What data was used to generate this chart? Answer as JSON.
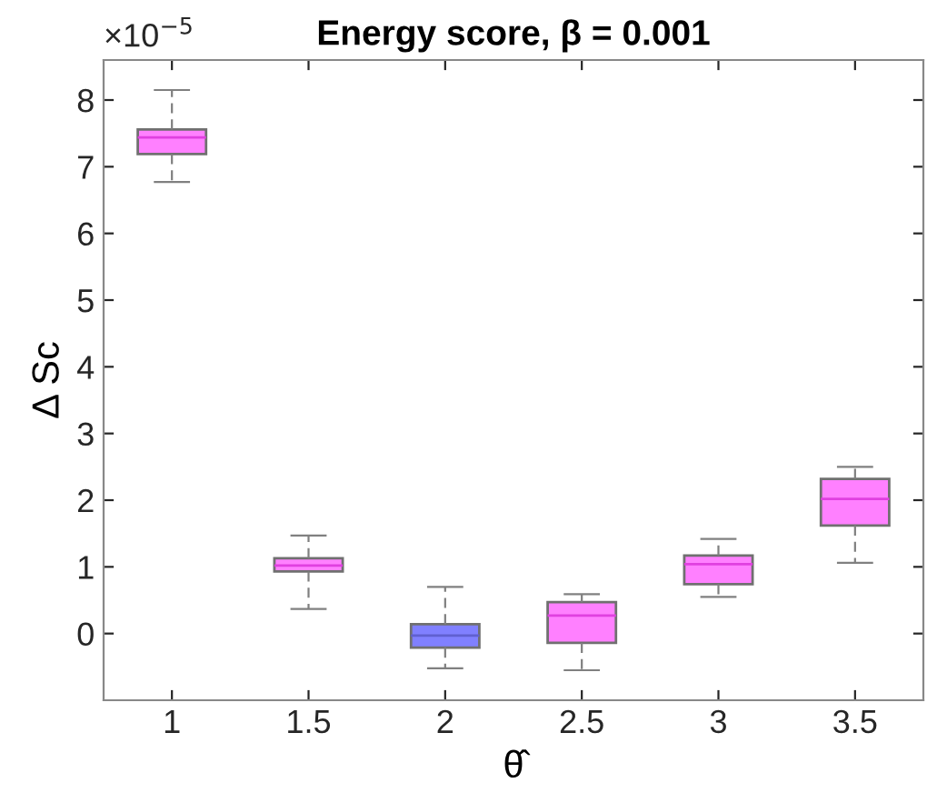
{
  "chart_data": {
    "type": "box",
    "title": "Energy score, β = 0.001",
    "xlabel": "θ̂",
    "ylabel": "Δ Sc",
    "x": [
      1,
      1.5,
      2,
      2.5,
      3,
      3.5
    ],
    "colors": [
      "#ff80ff",
      "#ff80ff",
      "#8080ff",
      "#ff80ff",
      "#ff80ff",
      "#ff80ff"
    ],
    "boxes": [
      {
        "low": 6.77,
        "q1": 7.19,
        "median": 7.44,
        "q3": 7.56,
        "high": 8.15
      },
      {
        "low": 0.37,
        "q1": 0.93,
        "median": 1.02,
        "q3": 1.13,
        "high": 1.47
      },
      {
        "low": -0.52,
        "q1": -0.21,
        "median": -0.03,
        "q3": 0.14,
        "high": 0.7
      },
      {
        "low": -0.55,
        "q1": -0.14,
        "median": 0.27,
        "q3": 0.47,
        "high": 0.59
      },
      {
        "low": 0.55,
        "q1": 0.74,
        "median": 1.04,
        "q3": 1.17,
        "high": 1.42
      },
      {
        "low": 1.06,
        "q1": 1.62,
        "median": 2.02,
        "q3": 2.32,
        "high": 2.5
      }
    ],
    "xlim": [
      0.75,
      3.75
    ],
    "ylim": [
      -1,
      8.6
    ],
    "xticks": [
      1,
      1.5,
      2,
      2.5,
      3,
      3.5
    ],
    "yticks": [
      0,
      1,
      2,
      3,
      4,
      5,
      6,
      7,
      8
    ],
    "annotations": [
      "×10$^{−5}$"
    ],
    "grid": false
  }
}
